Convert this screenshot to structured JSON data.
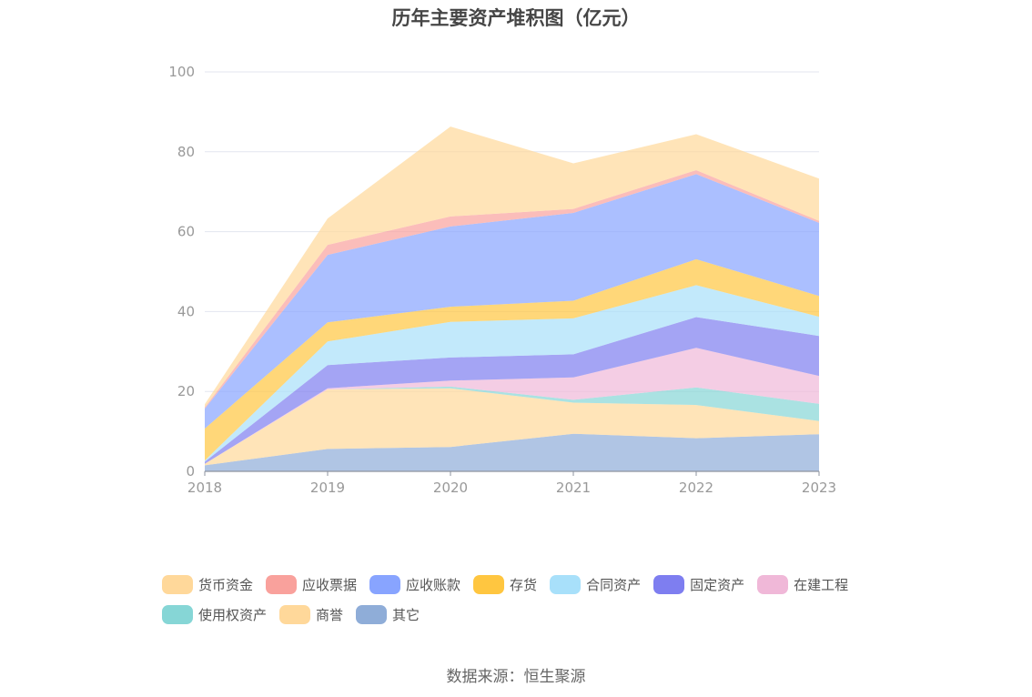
{
  "chart_data": {
    "type": "area",
    "stacked": true,
    "title": "历年主要资产堆积图（亿元）",
    "x": [
      "2018",
      "2019",
      "2020",
      "2021",
      "2022",
      "2023"
    ],
    "ylim": [
      0,
      100
    ],
    "yticks": [
      "0",
      "20",
      "40",
      "60",
      "80",
      "100"
    ],
    "grid": true,
    "legend_position": "bottom",
    "series": [
      {
        "name": "其它",
        "color": "#8fadd8",
        "values": [
          1.5,
          5.6,
          6.1,
          9.4,
          8.3,
          9.3
        ]
      },
      {
        "name": "商誉",
        "color": "#ffd89a",
        "values": [
          0.4,
          14.9,
          14.7,
          7.8,
          8.3,
          3.3
        ]
      },
      {
        "name": "使用权资产",
        "color": "#86d6d6",
        "values": [
          0.0,
          0.0,
          0.4,
          0.7,
          4.4,
          4.3
        ]
      },
      {
        "name": "在建工程",
        "color": "#f0b8d8",
        "values": [
          0.0,
          0.3,
          1.5,
          5.6,
          9.9,
          7.0
        ]
      },
      {
        "name": "固定资产",
        "color": "#7e7ef0",
        "values": [
          0.5,
          5.8,
          5.8,
          5.8,
          7.7,
          10.0
        ]
      },
      {
        "name": "合同资产",
        "color": "#a8e0fa",
        "values": [
          0.3,
          5.9,
          8.9,
          9.0,
          8.0,
          4.8
        ]
      },
      {
        "name": "存货",
        "color": "#ffc640",
        "values": [
          8.0,
          4.8,
          3.8,
          4.4,
          6.5,
          5.2
        ]
      },
      {
        "name": "应收账款",
        "color": "#88a4ff",
        "values": [
          5.0,
          16.9,
          20.1,
          22.0,
          21.3,
          18.3
        ]
      },
      {
        "name": "应收票据",
        "color": "#f9a19c",
        "values": [
          0.3,
          2.5,
          2.5,
          1.0,
          1.0,
          0.5
        ]
      },
      {
        "name": "货币资金",
        "color": "#ffd89a",
        "values": [
          0.8,
          6.6,
          22.5,
          11.4,
          9.0,
          10.6
        ]
      }
    ]
  },
  "legend": {
    "items": [
      {
        "label": "货币资金",
        "color": "#ffd89a"
      },
      {
        "label": "应收票据",
        "color": "#f9a19c"
      },
      {
        "label": "应收账款",
        "color": "#88a4ff"
      },
      {
        "label": "存货",
        "color": "#ffc640"
      },
      {
        "label": "合同资产",
        "color": "#a8e0fa"
      },
      {
        "label": "固定资产",
        "color": "#7e7ef0"
      },
      {
        "label": "在建工程",
        "color": "#f0b8d8"
      },
      {
        "label": "使用权资产",
        "color": "#86d6d6"
      },
      {
        "label": "商誉",
        "color": "#ffd89a"
      },
      {
        "label": "其它",
        "color": "#8fadd8"
      }
    ]
  },
  "source": "数据来源：恒生聚源"
}
